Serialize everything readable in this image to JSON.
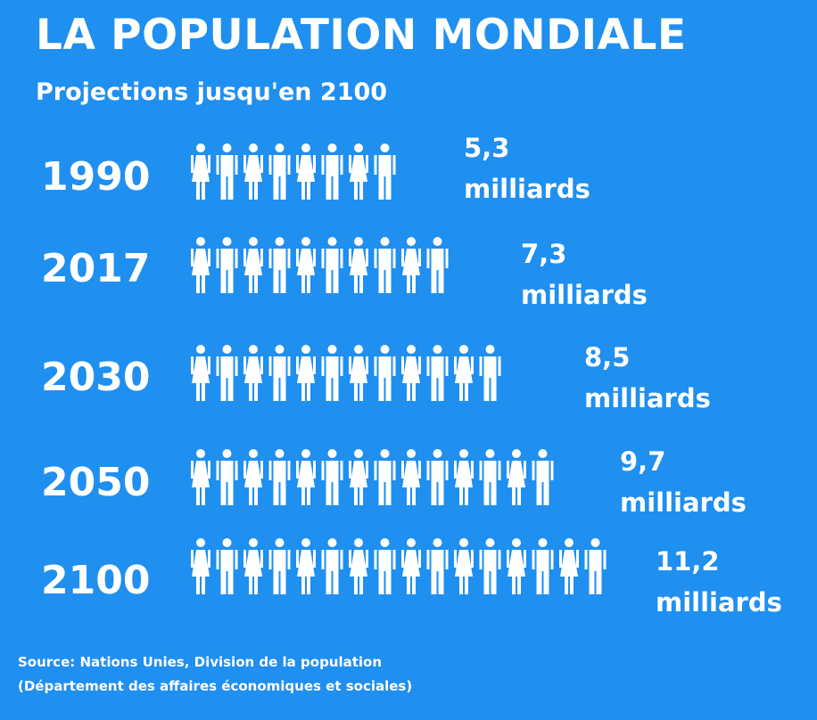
{
  "title": "LA POPULATION MONDIALE",
  "subtitle": "Projections jusqu'en 2100",
  "chart_data": {
    "type": "bar",
    "title": "LA POPULATION MONDIALE",
    "subtitle": "Projections jusqu'en 2100",
    "categories": [
      "1990",
      "2017",
      "2030",
      "2050",
      "2100"
    ],
    "values": [
      5.3,
      7.3,
      8.5,
      9.7,
      11.2
    ],
    "unit": "milliards",
    "value_labels": [
      "5,3",
      "7,3",
      "8,5",
      "9,7",
      "11,2"
    ],
    "figure_counts": [
      8,
      10,
      12,
      14,
      16
    ],
    "icon": "person-icon"
  },
  "rows": [
    {
      "year": "1990",
      "value": "5,3",
      "unit": "milliards"
    },
    {
      "year": "2017",
      "value": "7,3",
      "unit": "milliards"
    },
    {
      "year": "2030",
      "value": "8,5",
      "unit": "milliards"
    },
    {
      "year": "2050",
      "value": "9,7",
      "unit": "milliards"
    },
    {
      "year": "2100",
      "value": "11,2",
      "unit": "milliards"
    }
  ],
  "source": {
    "line1": "Source:  Nations Unies, Division de la population",
    "line2": "(Département des affaires économiques et sociales)"
  },
  "colors": {
    "background": "#1f8ff0",
    "foreground": "#ffffff"
  }
}
